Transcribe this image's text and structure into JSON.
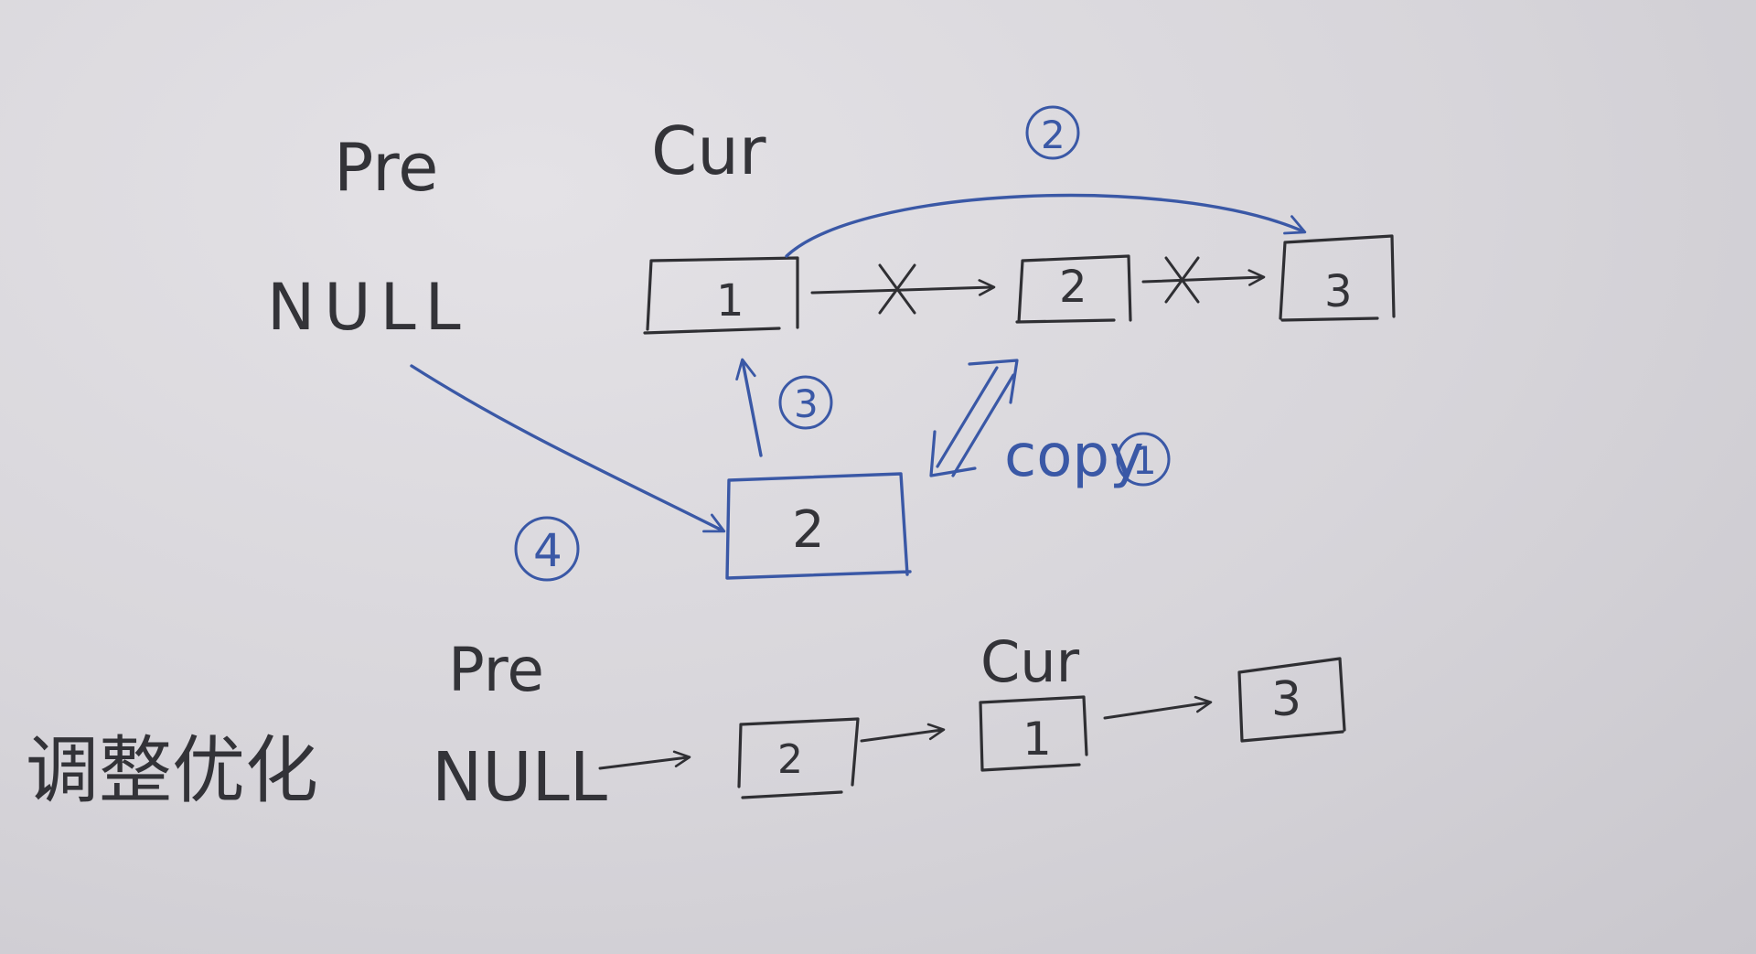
{
  "top": {
    "pre_label": "Pre",
    "null_label": "NULL",
    "cur_label": "Cur",
    "nodes": [
      "1",
      "2",
      "3"
    ],
    "copy_node": "2",
    "copy_label": "copy",
    "steps": {
      "step1": "1",
      "step2": "2",
      "step3": "3",
      "step4": "4"
    }
  },
  "bottom": {
    "title": "调整优化",
    "pre_label": "Pre",
    "null_label": "NULL",
    "cur_label": "Cur",
    "nodes": [
      "2",
      "1",
      "3"
    ]
  },
  "colors": {
    "paper": "#d7d5da",
    "pencil": "#2f2f33",
    "blue_pen": "#3a58a6"
  }
}
